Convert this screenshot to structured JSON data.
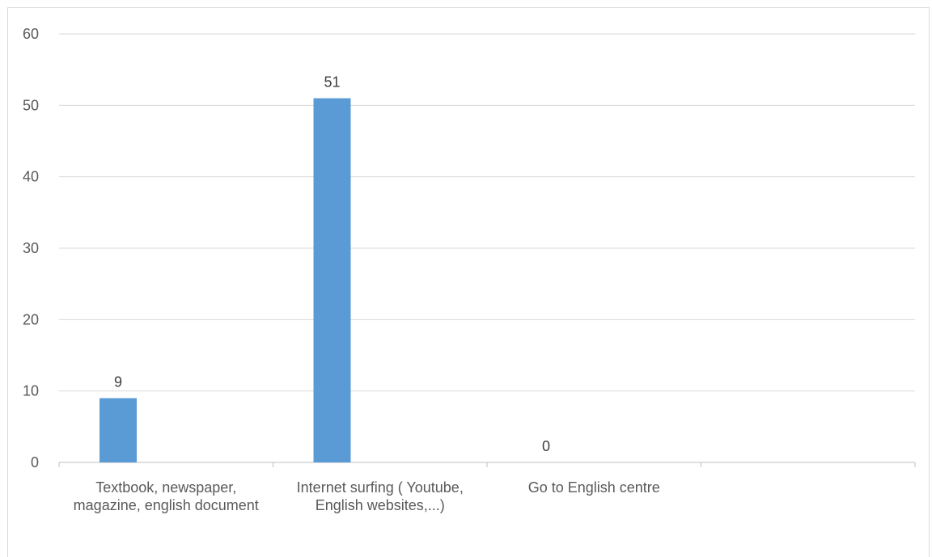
{
  "chart_data": {
    "type": "bar",
    "categories": [
      "Textbook, newspaper, magazine, english document",
      "Internet surfing ( Youtube, English websites,...)",
      "Go to English centre",
      ""
    ],
    "values": [
      9,
      51,
      0,
      null
    ],
    "data_labels": [
      "9",
      "51",
      "0",
      ""
    ],
    "ylim": [
      0,
      60
    ],
    "yticks": [
      0,
      10,
      20,
      30,
      40,
      50,
      60
    ],
    "grid": true,
    "legend": "none",
    "title": "",
    "xlabel": "",
    "ylabel": "",
    "colors": {
      "bar": "#5b9bd5",
      "grid": "#d9d9d9",
      "axis": "#bfbfbf",
      "text": "#595959"
    }
  }
}
